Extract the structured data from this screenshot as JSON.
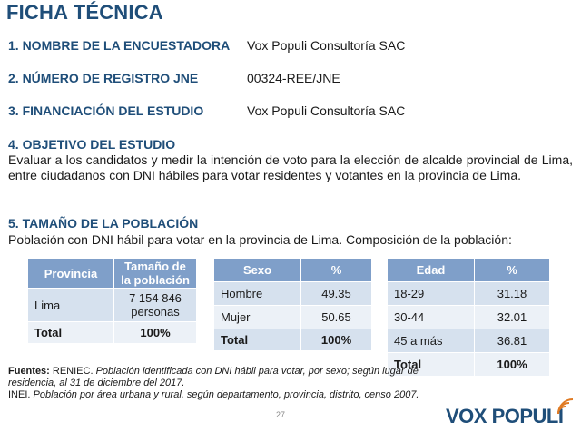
{
  "title": "FICHA TÉCNICA",
  "rows": [
    {
      "label": "1. NOMBRE DE LA ENCUESTADORA",
      "value": "Vox Populi Consultoría SAC"
    },
    {
      "label": "2. NÚMERO DE REGISTRO JNE",
      "value": "00324-REE/JNE"
    },
    {
      "label": "3. FINANCIACIÓN DEL ESTUDIO",
      "value": "Vox Populi Consultoría SAC"
    }
  ],
  "objective": {
    "heading": "4. OBJETIVO DEL ESTUDIO",
    "text": "Evaluar a los candidatos y medir la intención de voto para la elección de alcalde provincial de Lima, entre ciudadanos con DNI hábiles para votar residentes y votantes en la provincia de Lima."
  },
  "population": {
    "heading": "5. TAMAÑO DE LA POBLACIÓN",
    "text": "Población con DNI hábil para votar en la provincia de Lima. Composición de la población:"
  },
  "table_provincia": {
    "headers": [
      "Provincia",
      "Tamaño de la población"
    ],
    "rows": [
      [
        "Lima",
        "7 154 846 personas"
      ]
    ],
    "total": [
      "Total",
      "100%"
    ]
  },
  "table_sexo": {
    "headers": [
      "Sexo",
      "%"
    ],
    "rows": [
      [
        "Hombre",
        "49.35"
      ],
      [
        "Mujer",
        "50.65"
      ]
    ],
    "total": [
      "Total",
      "100%"
    ]
  },
  "table_edad": {
    "headers": [
      "Edad",
      "%"
    ],
    "rows": [
      [
        "18-29",
        "31.18"
      ],
      [
        "30-44",
        "32.01"
      ],
      [
        "45 a más",
        "36.81"
      ]
    ],
    "total": [
      "Total",
      "100%"
    ]
  },
  "sources": {
    "label": "Fuentes:",
    "org1": "RENIEC.",
    "text1": "Población identificada con DNI hábil para votar, por sexo; según lugar de residencia, al 31 de diciembre del 2017.",
    "org2": "INEI.",
    "text2": "Población por área urbana y rural, según departamento, provincia, distrito, censo 2007."
  },
  "page_number": "27",
  "logo": {
    "text": "VOX POPULI",
    "color": "#1f4e79",
    "accent": "#e07b24"
  },
  "colors": {
    "heading": "#1f4e79",
    "table_header": "#7f9fc9",
    "row_dark": "#d6e1ee",
    "row_light": "#ecf1f7"
  }
}
